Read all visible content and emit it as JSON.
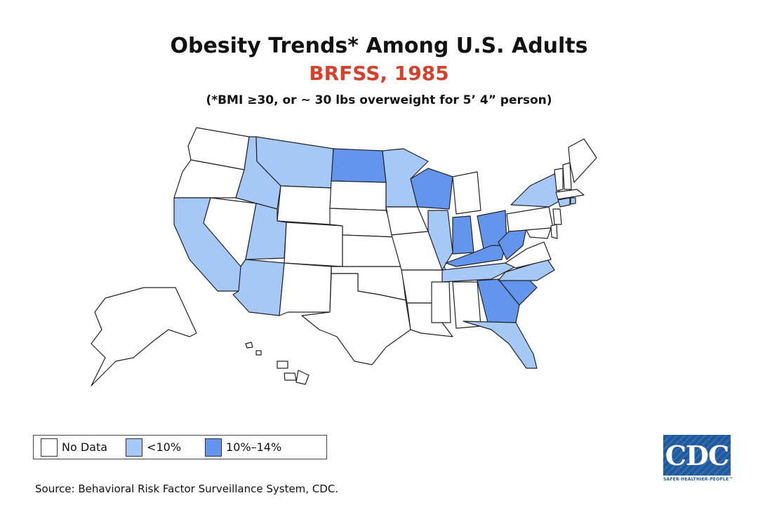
{
  "header": {
    "title": "Obesity Trends* Among U.S. Adults",
    "subtitle": "BRFSS, 1985",
    "footnote": "(*BMI ≥30, or ~ 30 lbs overweight for 5’ 4” person)"
  },
  "legend": {
    "items": [
      {
        "label": "No Data",
        "color": "#ffffff"
      },
      {
        "label": "<10%",
        "color": "#a6c8f7"
      },
      {
        "label": "10%–14%",
        "color": "#6495ed"
      }
    ]
  },
  "map_data": {
    "colors": {
      "no_data": "#ffffff",
      "lt10": "#a6c8f7",
      "10to14": "#6495ed",
      "border": "#222222"
    },
    "categories": {
      "lt10": [
        "Montana",
        "Idaho",
        "Utah",
        "Arizona",
        "California",
        "Minnesota",
        "Illinois",
        "Tennessee",
        "North Carolina",
        "New York",
        "Connecticut",
        "Rhode Island",
        "Florida"
      ],
      "10to14": [
        "North Dakota",
        "Wisconsin",
        "Indiana",
        "Ohio",
        "Kentucky",
        "West Virginia",
        "South Carolina",
        "Georgia"
      ],
      "no_data": [
        "Washington",
        "Oregon",
        "Nevada",
        "Wyoming",
        "Colorado",
        "New Mexico",
        "Texas",
        "Oklahoma",
        "Kansas",
        "Nebraska",
        "South Dakota",
        "Iowa",
        "Missouri",
        "Arkansas",
        "Louisiana",
        "Mississippi",
        "Alabama",
        "Michigan",
        "Pennsylvania",
        "Virginia",
        "Maryland",
        "Delaware",
        "New Jersey",
        "Vermont",
        "New Hampshire",
        "Maine",
        "Massachusetts",
        "Alaska",
        "Hawaii"
      ]
    }
  },
  "footer": {
    "source": "Source: Behavioral Risk Factor Surveillance System, CDC.",
    "logo_text": "CDC",
    "logo_tagline": "SAFER·HEALTHIER·PEOPLE™"
  }
}
